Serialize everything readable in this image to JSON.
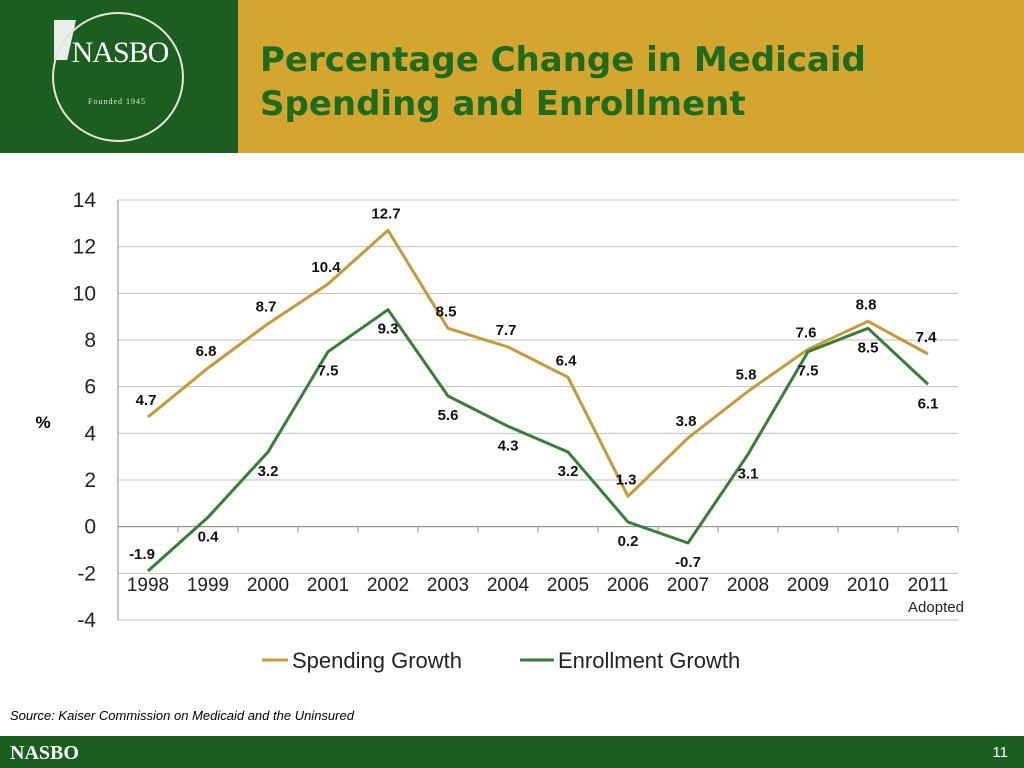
{
  "header": {
    "logo_text": "NASBO",
    "logo_sub": "Founded 1945",
    "title_line1": "Percentage Change in Medicaid",
    "title_line2": "Spending and Enrollment"
  },
  "colors": {
    "green": "#1b5e20",
    "gold": "#d4a52f",
    "spending": "#c49a3a",
    "enrollment": "#3a7d3a",
    "title": "#1e6b1e"
  },
  "chart_data": {
    "type": "line",
    "x": [
      "1998",
      "1999",
      "2000",
      "2001",
      "2002",
      "2003",
      "2004",
      "2005",
      "2006",
      "2007",
      "2008",
      "2009",
      "2010",
      "2011"
    ],
    "x_note": "Adopted",
    "ylabel": "%",
    "ylim": [
      -4,
      14
    ],
    "yticks": [
      "14",
      "12",
      "10",
      "8",
      "6",
      "4",
      "2",
      "0",
      "-2",
      "-4"
    ],
    "grid": true,
    "legend": "bottom",
    "series": [
      {
        "name": "Spending Growth",
        "values": [
          4.7,
          6.8,
          8.7,
          10.4,
          12.7,
          8.5,
          7.7,
          6.4,
          1.3,
          3.8,
          5.8,
          7.6,
          8.8,
          7.4
        ]
      },
      {
        "name": "Enrollment Growth",
        "values": [
          -1.9,
          0.4,
          3.2,
          7.5,
          9.3,
          5.6,
          4.3,
          3.2,
          0.2,
          -0.7,
          3.1,
          7.5,
          8.5,
          6.1
        ]
      }
    ],
    "label_text": {
      "spending": [
        "4.7",
        "6.8",
        "8.7",
        "10.4",
        "12.7",
        "8.5",
        "7.7",
        "6.4",
        "1.3",
        "3.8",
        "5.8",
        "7.6",
        "8.8",
        "7.4"
      ],
      "enrollment": [
        "-1.9",
        "0.4",
        "3.2",
        "7.5",
        "9.3",
        "5.6",
        "4.3",
        "3.2",
        "0.2",
        "-0.7",
        "3.1",
        "7.5",
        "8.5",
        "6.1"
      ]
    }
  },
  "source": "Source: Kaiser Commission on Medicaid and the Uninsured",
  "footer": {
    "brand": "NASBO",
    "page": "11"
  }
}
